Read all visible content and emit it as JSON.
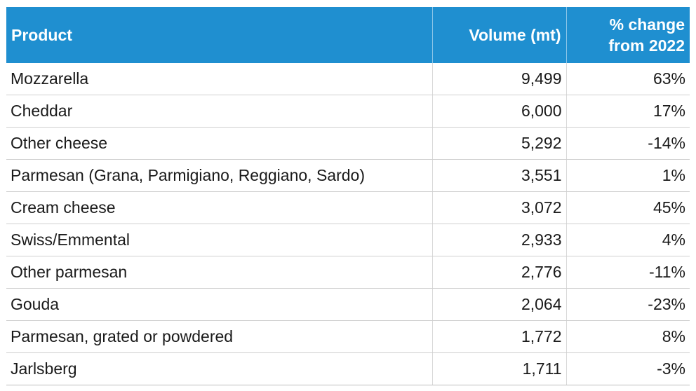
{
  "table": {
    "headers": {
      "product": "Product",
      "volume": "Volume (mt)",
      "change_line1": "% change",
      "change_line2": "from 2022"
    },
    "rows": [
      {
        "product": "Mozzarella",
        "volume": "9,499",
        "change": "63%"
      },
      {
        "product": "Cheddar",
        "volume": "6,000",
        "change": "17%"
      },
      {
        "product": "Other cheese",
        "volume": "5,292",
        "change": "-14%"
      },
      {
        "product": "Parmesan (Grana, Parmigiano, Reggiano, Sardo)",
        "volume": "3,551",
        "change": "1%"
      },
      {
        "product": "Cream cheese",
        "volume": "3,072",
        "change": "45%"
      },
      {
        "product": "Swiss/Emmental",
        "volume": "2,933",
        "change": "4%"
      },
      {
        "product": "Other parmesan",
        "volume": "2,776",
        "change": "-11%"
      },
      {
        "product": "Gouda",
        "volume": "2,064",
        "change": "-23%"
      },
      {
        "product": "Parmesan, grated or powdered",
        "volume": "1,772",
        "change": "8%"
      },
      {
        "product": "Jarlsberg",
        "volume": "1,711",
        "change": "-3%"
      }
    ]
  },
  "colors": {
    "header_background": "#1f8fd0",
    "header_text": "#ffffff"
  }
}
